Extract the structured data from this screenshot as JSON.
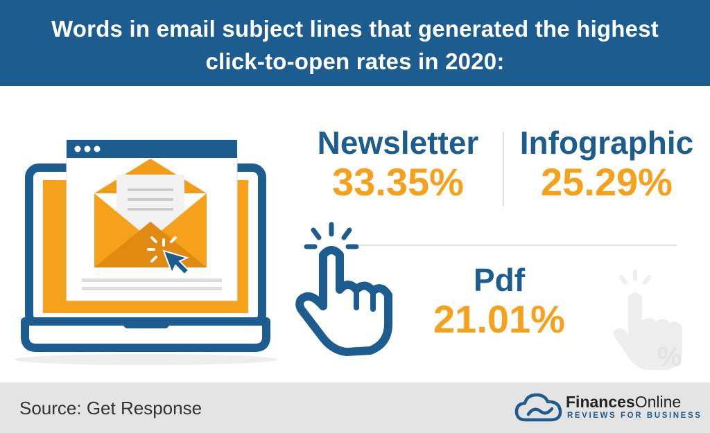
{
  "header": {
    "title_line1": "Words in email subject lines that generated the highest",
    "title_line2": "click-to-open rates in 2020:"
  },
  "stats": [
    {
      "label": "Newsletter",
      "value": "33.35%"
    },
    {
      "label": "Infographic",
      "value": "25.29%"
    },
    {
      "label": "Pdf",
      "value": "21.01%"
    }
  ],
  "footer": {
    "source": "Source: Get Response",
    "brand_name_bold": "Finances",
    "brand_name_regular": "Online",
    "brand_tagline": "REVIEWS FOR BUSINESS"
  },
  "icons": [
    "laptop-icon",
    "browser-window-icon",
    "envelope-icon",
    "cursor-click-icon",
    "pointing-hand-icon",
    "hand-percent-icon",
    "cloud-logo-icon"
  ],
  "colors": {
    "brand_blue": "#1c5c8e",
    "accent_orange": "#f5a11c",
    "footer_gray": "#e4e4e4"
  }
}
